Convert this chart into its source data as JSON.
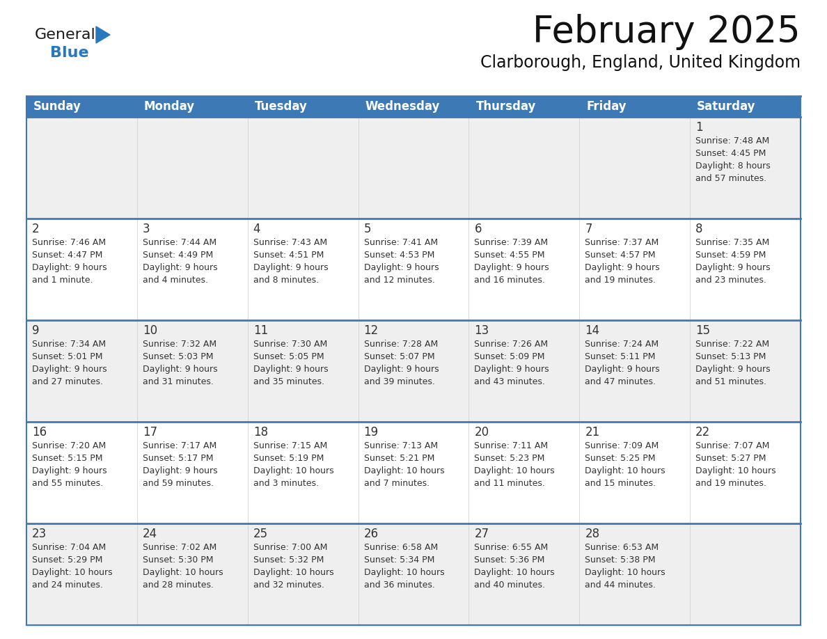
{
  "title": "February 2025",
  "subtitle": "Clarborough, England, United Kingdom",
  "days_of_week": [
    "Sunday",
    "Monday",
    "Tuesday",
    "Wednesday",
    "Thursday",
    "Friday",
    "Saturday"
  ],
  "header_bg": "#3d7ab5",
  "header_text": "#ffffff",
  "row_bg_light": "#efefef",
  "row_bg_white": "#ffffff",
  "cell_border_color": "#3d7ab5",
  "cell_border_thin": "#cccccc",
  "day_number_color": "#333333",
  "info_text_color": "#333333",
  "calendar_data": [
    {
      "day": 1,
      "col": 6,
      "row": 0,
      "sunrise": "7:48 AM",
      "sunset": "4:45 PM",
      "daylight": "8 hours\nand 57 minutes."
    },
    {
      "day": 2,
      "col": 0,
      "row": 1,
      "sunrise": "7:46 AM",
      "sunset": "4:47 PM",
      "daylight": "9 hours\nand 1 minute."
    },
    {
      "day": 3,
      "col": 1,
      "row": 1,
      "sunrise": "7:44 AM",
      "sunset": "4:49 PM",
      "daylight": "9 hours\nand 4 minutes."
    },
    {
      "day": 4,
      "col": 2,
      "row": 1,
      "sunrise": "7:43 AM",
      "sunset": "4:51 PM",
      "daylight": "9 hours\nand 8 minutes."
    },
    {
      "day": 5,
      "col": 3,
      "row": 1,
      "sunrise": "7:41 AM",
      "sunset": "4:53 PM",
      "daylight": "9 hours\nand 12 minutes."
    },
    {
      "day": 6,
      "col": 4,
      "row": 1,
      "sunrise": "7:39 AM",
      "sunset": "4:55 PM",
      "daylight": "9 hours\nand 16 minutes."
    },
    {
      "day": 7,
      "col": 5,
      "row": 1,
      "sunrise": "7:37 AM",
      "sunset": "4:57 PM",
      "daylight": "9 hours\nand 19 minutes."
    },
    {
      "day": 8,
      "col": 6,
      "row": 1,
      "sunrise": "7:35 AM",
      "sunset": "4:59 PM",
      "daylight": "9 hours\nand 23 minutes."
    },
    {
      "day": 9,
      "col": 0,
      "row": 2,
      "sunrise": "7:34 AM",
      "sunset": "5:01 PM",
      "daylight": "9 hours\nand 27 minutes."
    },
    {
      "day": 10,
      "col": 1,
      "row": 2,
      "sunrise": "7:32 AM",
      "sunset": "5:03 PM",
      "daylight": "9 hours\nand 31 minutes."
    },
    {
      "day": 11,
      "col": 2,
      "row": 2,
      "sunrise": "7:30 AM",
      "sunset": "5:05 PM",
      "daylight": "9 hours\nand 35 minutes."
    },
    {
      "day": 12,
      "col": 3,
      "row": 2,
      "sunrise": "7:28 AM",
      "sunset": "5:07 PM",
      "daylight": "9 hours\nand 39 minutes."
    },
    {
      "day": 13,
      "col": 4,
      "row": 2,
      "sunrise": "7:26 AM",
      "sunset": "5:09 PM",
      "daylight": "9 hours\nand 43 minutes."
    },
    {
      "day": 14,
      "col": 5,
      "row": 2,
      "sunrise": "7:24 AM",
      "sunset": "5:11 PM",
      "daylight": "9 hours\nand 47 minutes."
    },
    {
      "day": 15,
      "col": 6,
      "row": 2,
      "sunrise": "7:22 AM",
      "sunset": "5:13 PM",
      "daylight": "9 hours\nand 51 minutes."
    },
    {
      "day": 16,
      "col": 0,
      "row": 3,
      "sunrise": "7:20 AM",
      "sunset": "5:15 PM",
      "daylight": "9 hours\nand 55 minutes."
    },
    {
      "day": 17,
      "col": 1,
      "row": 3,
      "sunrise": "7:17 AM",
      "sunset": "5:17 PM",
      "daylight": "9 hours\nand 59 minutes."
    },
    {
      "day": 18,
      "col": 2,
      "row": 3,
      "sunrise": "7:15 AM",
      "sunset": "5:19 PM",
      "daylight": "10 hours\nand 3 minutes."
    },
    {
      "day": 19,
      "col": 3,
      "row": 3,
      "sunrise": "7:13 AM",
      "sunset": "5:21 PM",
      "daylight": "10 hours\nand 7 minutes."
    },
    {
      "day": 20,
      "col": 4,
      "row": 3,
      "sunrise": "7:11 AM",
      "sunset": "5:23 PM",
      "daylight": "10 hours\nand 11 minutes."
    },
    {
      "day": 21,
      "col": 5,
      "row": 3,
      "sunrise": "7:09 AM",
      "sunset": "5:25 PM",
      "daylight": "10 hours\nand 15 minutes."
    },
    {
      "day": 22,
      "col": 6,
      "row": 3,
      "sunrise": "7:07 AM",
      "sunset": "5:27 PM",
      "daylight": "10 hours\nand 19 minutes."
    },
    {
      "day": 23,
      "col": 0,
      "row": 4,
      "sunrise": "7:04 AM",
      "sunset": "5:29 PM",
      "daylight": "10 hours\nand 24 minutes."
    },
    {
      "day": 24,
      "col": 1,
      "row": 4,
      "sunrise": "7:02 AM",
      "sunset": "5:30 PM",
      "daylight": "10 hours\nand 28 minutes."
    },
    {
      "day": 25,
      "col": 2,
      "row": 4,
      "sunrise": "7:00 AM",
      "sunset": "5:32 PM",
      "daylight": "10 hours\nand 32 minutes."
    },
    {
      "day": 26,
      "col": 3,
      "row": 4,
      "sunrise": "6:58 AM",
      "sunset": "5:34 PM",
      "daylight": "10 hours\nand 36 minutes."
    },
    {
      "day": 27,
      "col": 4,
      "row": 4,
      "sunrise": "6:55 AM",
      "sunset": "5:36 PM",
      "daylight": "10 hours\nand 40 minutes."
    },
    {
      "day": 28,
      "col": 5,
      "row": 4,
      "sunrise": "6:53 AM",
      "sunset": "5:38 PM",
      "daylight": "10 hours\nand 44 minutes."
    }
  ],
  "logo_text_general": "General",
  "logo_text_blue": "Blue",
  "logo_color_general": "#1a1a1a",
  "logo_color_blue": "#2878c0",
  "logo_triangle_color": "#2878c0",
  "title_fontsize": 38,
  "subtitle_fontsize": 17,
  "header_fontsize": 12,
  "day_num_fontsize": 12,
  "info_fontsize": 9
}
